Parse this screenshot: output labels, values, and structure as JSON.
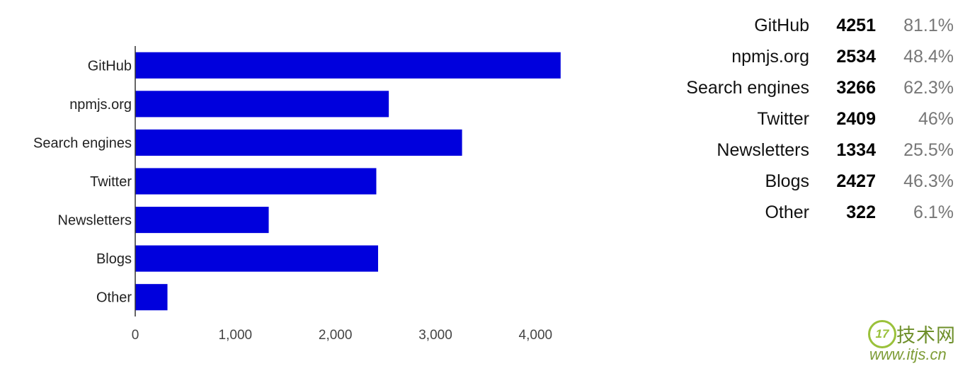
{
  "chart_data": {
    "type": "bar",
    "orientation": "horizontal",
    "categories": [
      "GitHub",
      "npmjs.org",
      "Search engines",
      "Twitter",
      "Newsletters",
      "Blogs",
      "Other"
    ],
    "values": [
      4251,
      2534,
      3266,
      2409,
      1334,
      2427,
      322
    ],
    "xlim": [
      0,
      4500
    ],
    "xticks": [
      0,
      1000,
      2000,
      3000,
      4000
    ],
    "xtick_labels": [
      "0",
      "1,000",
      "2,000",
      "3,000",
      "4,000"
    ],
    "bar_color": "#0000dd",
    "grid": false
  },
  "stats": [
    {
      "name": "GitHub",
      "count": "4251",
      "pct": "81.1%"
    },
    {
      "name": "npmjs.org",
      "count": "2534",
      "pct": "48.4%"
    },
    {
      "name": "Search engines",
      "count": "3266",
      "pct": "62.3%"
    },
    {
      "name": "Twitter",
      "count": "2409",
      "pct": "46%"
    },
    {
      "name": "Newsletters",
      "count": "1334",
      "pct": "25.5%"
    },
    {
      "name": "Blogs",
      "count": "2427",
      "pct": "46.3%"
    },
    {
      "name": "Other",
      "count": "322",
      "pct": "6.1%"
    }
  ],
  "watermark": {
    "badge": "17",
    "title": "技术网",
    "url": "www.itjs.cn",
    "color": "#7d9c36"
  }
}
